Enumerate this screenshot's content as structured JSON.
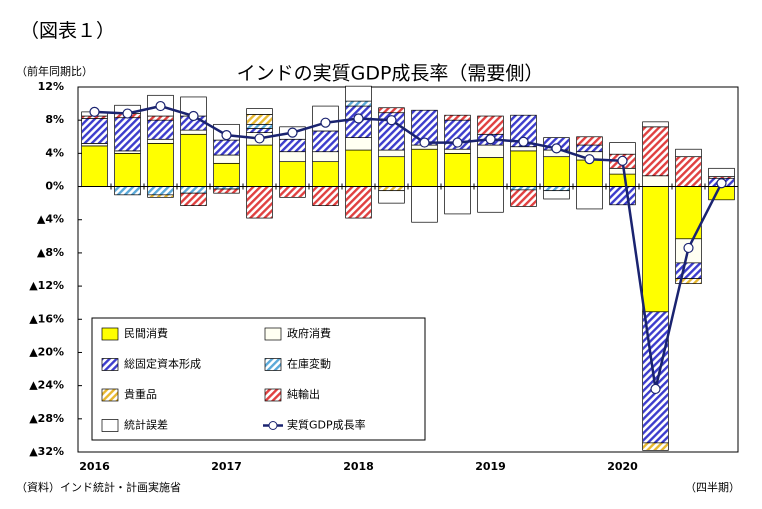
{
  "figure_label": "（図表１）",
  "chart_data": {
    "type": "stacked_bar_line",
    "title": "インドの実質GDP成長率（需要側）",
    "y_label": "（前年同期比）",
    "x_label": "（四半期）",
    "source": "（資料）インド統計・計画実施省",
    "categories": [
      "2016",
      null,
      null,
      null,
      "2017",
      null,
      null,
      null,
      "2018",
      null,
      null,
      null,
      "2019",
      null,
      null,
      null,
      "2020",
      null,
      null,
      null
    ],
    "ylim": [
      -32,
      12
    ],
    "yticks": [
      {
        "value": 12,
        "label": "12%"
      },
      {
        "value": 8,
        "label": "8%"
      },
      {
        "value": 4,
        "label": "4%"
      },
      {
        "value": 0,
        "label": "0%"
      },
      {
        "value": -4,
        "label": "▲4%"
      },
      {
        "value": -8,
        "label": "▲8%"
      },
      {
        "value": -12,
        "label": "▲12%"
      },
      {
        "value": -16,
        "label": "▲16%"
      },
      {
        "value": -20,
        "label": "▲20%"
      },
      {
        "value": -24,
        "label": "▲24%"
      },
      {
        "value": -28,
        "label": "▲28%"
      },
      {
        "value": -32,
        "label": "▲32%"
      }
    ],
    "series": [
      {
        "name": "民間消費",
        "color": "#ffff00",
        "pattern": "solid",
        "values": [
          4.9,
          4.0,
          5.2,
          6.3,
          2.8,
          5.0,
          3.0,
          3.0,
          4.4,
          3.6,
          4.5,
          4.0,
          3.5,
          4.3,
          3.6,
          3.2,
          1.5,
          -15.1,
          -6.3,
          -1.6
        ]
      },
      {
        "name": "政府消費",
        "color": "#fffff2",
        "pattern": "solid",
        "values": [
          0.3,
          0.3,
          0.5,
          0.5,
          1.0,
          1.5,
          1.2,
          1.2,
          1.5,
          0.8,
          0.5,
          0.5,
          1.5,
          0.5,
          0.8,
          1.0,
          0.7,
          1.3,
          -2.9,
          0.0
        ]
      },
      {
        "name": "総固定資本形成",
        "color": "#3c3ccc",
        "pattern": "hatch",
        "values": [
          3.0,
          4.0,
          2.3,
          1.7,
          1.8,
          0.5,
          1.5,
          2.5,
          3.8,
          4.5,
          4.2,
          3.5,
          1.3,
          3.8,
          1.5,
          0.8,
          -2.2,
          -15.8,
          -1.9,
          1.0
        ]
      },
      {
        "name": "在庫変動",
        "color": "#5aa8d8",
        "pattern": "hatch",
        "values": [
          0.0,
          -1.0,
          -1.0,
          -0.8,
          -0.3,
          0.5,
          0.0,
          0.0,
          0.6,
          0.0,
          0.0,
          0.0,
          0.0,
          -0.4,
          -0.5,
          0.0,
          0.0,
          0.0,
          0.0,
          0.0
        ]
      },
      {
        "name": "貴重品",
        "color": "#e8b830",
        "pattern": "hatch",
        "values": [
          0.0,
          0.0,
          -0.3,
          0.0,
          0.0,
          1.2,
          0.0,
          0.0,
          0.0,
          -0.5,
          0.0,
          0.0,
          0.0,
          0.0,
          0.0,
          0.0,
          0.0,
          -0.9,
          -0.6,
          0.0
        ]
      },
      {
        "name": "純輸出",
        "color": "#e04040",
        "pattern": "hatch",
        "values": [
          0.3,
          0.5,
          0.5,
          -1.5,
          -0.5,
          -3.8,
          -1.3,
          -2.3,
          -3.8,
          0.6,
          0.0,
          0.6,
          2.2,
          -2.0,
          0.0,
          1.0,
          1.7,
          5.9,
          3.6,
          0.2
        ]
      },
      {
        "name": "統計誤差",
        "color": "#ffffff",
        "pattern": "solid",
        "values": [
          0.5,
          1.0,
          2.5,
          2.3,
          1.9,
          0.7,
          1.5,
          3.0,
          1.8,
          -1.5,
          -4.3,
          -3.3,
          -3.1,
          0.0,
          -1.0,
          -2.7,
          1.4,
          0.6,
          0.9,
          1.0
        ]
      }
    ],
    "line": {
      "name": "実質GDP成長率",
      "color": "#1a2370",
      "values": [
        9.0,
        8.8,
        9.7,
        8.5,
        6.2,
        5.8,
        6.5,
        7.7,
        8.2,
        8.0,
        5.3,
        5.3,
        5.7,
        5.4,
        4.6,
        3.3,
        3.1,
        -24.4,
        -7.4,
        0.4
      ]
    }
  }
}
